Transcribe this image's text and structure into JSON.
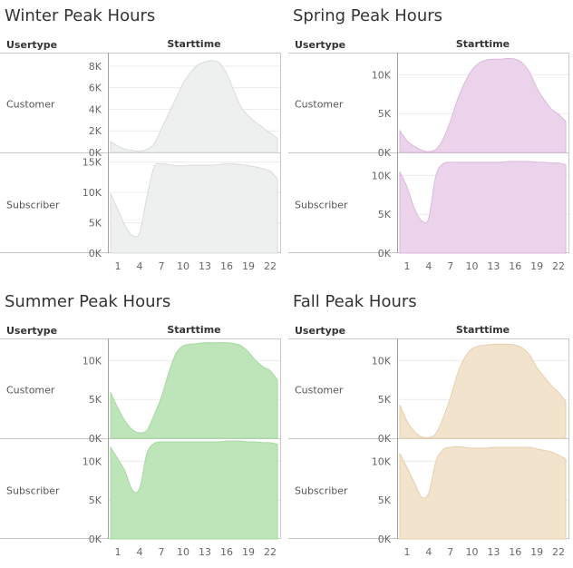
{
  "labels": {
    "usertype": "Usertype",
    "starttime": "Starttime"
  },
  "x_ticks": [
    1,
    4,
    7,
    10,
    13,
    16,
    19,
    22
  ],
  "chart_data": [
    {
      "type": "area",
      "title": "Winter Peak Hours",
      "x": [
        0,
        1,
        2,
        3,
        4,
        5,
        6,
        7,
        8,
        9,
        10,
        11,
        12,
        13,
        14,
        15,
        16,
        17,
        18,
        19,
        20,
        21,
        22,
        23
      ],
      "colors": {
        "fill": "#eef0f0",
        "line": "#d9dcdc"
      },
      "rows": [
        {
          "usertype": "Customer",
          "ylim": [
            0,
            9000
          ],
          "yticks": [
            {
              "v": 0,
              "label": "0K"
            },
            {
              "v": 2000,
              "label": "2K"
            },
            {
              "v": 4000,
              "label": "4K"
            },
            {
              "v": 6000,
              "label": "6K"
            },
            {
              "v": 8000,
              "label": "8K"
            }
          ],
          "values": [
            1000,
            600,
            300,
            200,
            100,
            300,
            800,
            2200,
            3600,
            5000,
            6400,
            7400,
            8100,
            8400,
            8500,
            8300,
            7300,
            5700,
            4200,
            3400,
            2800,
            2300,
            1800,
            1300
          ]
        },
        {
          "usertype": "Subscriber",
          "ylim": [
            0,
            16000
          ],
          "yticks": [
            {
              "v": 0,
              "label": "0K"
            },
            {
              "v": 5000,
              "label": "5K"
            },
            {
              "v": 10000,
              "label": "10K"
            },
            {
              "v": 15000,
              "label": "15K"
            }
          ],
          "values": [
            9800,
            7200,
            4500,
            2900,
            3400,
            9200,
            14200,
            14700,
            14600,
            14400,
            14400,
            14500,
            14500,
            14500,
            14500,
            14600,
            14700,
            14700,
            14600,
            14400,
            14200,
            13900,
            13500,
            12200
          ]
        }
      ]
    },
    {
      "type": "area",
      "title": "Spring Peak Hours",
      "x": [
        0,
        1,
        2,
        3,
        4,
        5,
        6,
        7,
        8,
        9,
        10,
        11,
        12,
        13,
        14,
        15,
        16,
        17,
        18,
        19,
        20,
        21,
        22,
        23
      ],
      "colors": {
        "fill": "#ecd3ec",
        "line": "#dcb8dc"
      },
      "rows": [
        {
          "usertype": "Customer",
          "ylim": [
            0,
            12500
          ],
          "yticks": [
            {
              "v": 0,
              "label": "0K"
            },
            {
              "v": 5000,
              "label": "5K"
            },
            {
              "v": 10000,
              "label": "10K"
            }
          ],
          "values": [
            2800,
            1500,
            800,
            300,
            100,
            400,
            1700,
            4000,
            6800,
            9000,
            10600,
            11500,
            11900,
            12000,
            12000,
            12100,
            12000,
            11500,
            10300,
            8300,
            6800,
            5600,
            4900,
            4000
          ]
        },
        {
          "usertype": "Subscriber",
          "ylim": [
            0,
            12500
          ],
          "yticks": [
            {
              "v": 0,
              "label": "0K"
            },
            {
              "v": 5000,
              "label": "5K"
            },
            {
              "v": 10000,
              "label": "10K"
            }
          ],
          "values": [
            10500,
            8500,
            5800,
            4200,
            4500,
            10000,
            11500,
            11700,
            11700,
            11700,
            11700,
            11700,
            11700,
            11700,
            11700,
            11800,
            11800,
            11800,
            11800,
            11700,
            11700,
            11600,
            11600,
            11400
          ]
        }
      ]
    },
    {
      "type": "area",
      "title": "Summer Peak Hours",
      "x": [
        0,
        1,
        2,
        3,
        4,
        5,
        6,
        7,
        8,
        9,
        10,
        11,
        12,
        13,
        14,
        15,
        16,
        17,
        18,
        19,
        20,
        21,
        22,
        23
      ],
      "colors": {
        "fill": "#bde5b9",
        "line": "#a5d9a0"
      },
      "rows": [
        {
          "usertype": "Customer",
          "ylim": [
            0,
            12500
          ],
          "yticks": [
            {
              "v": 0,
              "label": "0K"
            },
            {
              "v": 5000,
              "label": "5K"
            },
            {
              "v": 10000,
              "label": "10K"
            }
          ],
          "values": [
            5900,
            3900,
            2200,
            1100,
            700,
            1000,
            3000,
            5300,
            8400,
            10900,
            11900,
            12100,
            12200,
            12300,
            12300,
            12300,
            12300,
            12200,
            11900,
            11100,
            10000,
            9200,
            8700,
            7500
          ]
        },
        {
          "usertype": "Subscriber",
          "ylim": [
            0,
            12500
          ],
          "yticks": [
            {
              "v": 0,
              "label": "0K"
            },
            {
              "v": 5000,
              "label": "5K"
            },
            {
              "v": 10000,
              "label": "10K"
            }
          ],
          "values": [
            11800,
            10300,
            8700,
            6300,
            6500,
            11000,
            12300,
            12500,
            12500,
            12500,
            12500,
            12500,
            12500,
            12500,
            12500,
            12500,
            12600,
            12600,
            12600,
            12500,
            12500,
            12400,
            12400,
            12200
          ]
        }
      ]
    },
    {
      "type": "area",
      "title": "Fall Peak Hours",
      "x": [
        0,
        1,
        2,
        3,
        4,
        5,
        6,
        7,
        8,
        9,
        10,
        11,
        12,
        13,
        14,
        15,
        16,
        17,
        18,
        19,
        20,
        21,
        22,
        23
      ],
      "colors": {
        "fill": "#f2e3cc",
        "line": "#e6d0ae"
      },
      "rows": [
        {
          "usertype": "Customer",
          "ylim": [
            0,
            12500
          ],
          "yticks": [
            {
              "v": 0,
              "label": "0K"
            },
            {
              "v": 5000,
              "label": "5K"
            },
            {
              "v": 10000,
              "label": "10K"
            }
          ],
          "values": [
            4300,
            2200,
            900,
            200,
            100,
            600,
            2600,
            5200,
            8300,
            10400,
            11500,
            11900,
            12000,
            12100,
            12100,
            12100,
            12000,
            11600,
            10700,
            9100,
            7900,
            6800,
            5900,
            4700
          ]
        },
        {
          "usertype": "Subscriber",
          "ylim": [
            0,
            12500
          ],
          "yticks": [
            {
              "v": 0,
              "label": "0K"
            },
            {
              "v": 5000,
              "label": "5K"
            },
            {
              "v": 10000,
              "label": "10K"
            }
          ],
          "values": [
            11000,
            9200,
            7300,
            5400,
            5900,
            10000,
            11500,
            11800,
            11900,
            11800,
            11700,
            11700,
            11700,
            11800,
            11800,
            11800,
            11800,
            11800,
            11800,
            11600,
            11400,
            11200,
            10800,
            10300
          ]
        }
      ]
    }
  ]
}
